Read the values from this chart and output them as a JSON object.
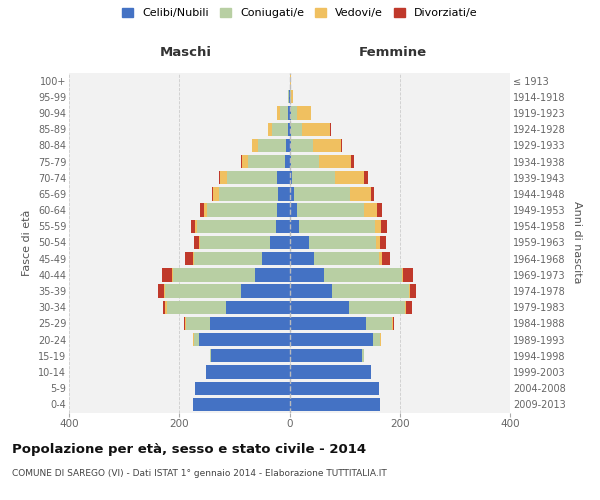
{
  "age_groups": [
    "0-4",
    "5-9",
    "10-14",
    "15-19",
    "20-24",
    "25-29",
    "30-34",
    "35-39",
    "40-44",
    "45-49",
    "50-54",
    "55-59",
    "60-64",
    "65-69",
    "70-74",
    "75-79",
    "80-84",
    "85-89",
    "90-94",
    "95-99",
    "100+"
  ],
  "birth_years": [
    "2009-2013",
    "2004-2008",
    "1999-2003",
    "1994-1998",
    "1989-1993",
    "1984-1988",
    "1979-1983",
    "1974-1978",
    "1969-1973",
    "1964-1968",
    "1959-1963",
    "1954-1958",
    "1949-1953",
    "1944-1948",
    "1939-1943",
    "1934-1938",
    "1929-1933",
    "1924-1928",
    "1919-1923",
    "1914-1918",
    "≤ 1913"
  ],
  "male_celibi": [
    175,
    172,
    152,
    142,
    165,
    145,
    115,
    88,
    62,
    50,
    35,
    25,
    22,
    20,
    22,
    8,
    6,
    3,
    3,
    1,
    0
  ],
  "male_coniugati": [
    0,
    0,
    0,
    2,
    8,
    42,
    108,
    138,
    150,
    123,
    128,
    143,
    128,
    108,
    92,
    68,
    52,
    28,
    14,
    2,
    0
  ],
  "male_vedovi": [
    0,
    0,
    0,
    0,
    2,
    2,
    2,
    2,
    2,
    2,
    2,
    3,
    5,
    10,
    12,
    10,
    10,
    8,
    5,
    0,
    0
  ],
  "male_divorziati": [
    0,
    0,
    0,
    0,
    0,
    2,
    5,
    10,
    18,
    14,
    8,
    8,
    8,
    2,
    2,
    2,
    0,
    0,
    0,
    0,
    0
  ],
  "female_celibi": [
    165,
    162,
    148,
    132,
    152,
    138,
    108,
    78,
    62,
    44,
    35,
    18,
    14,
    8,
    5,
    2,
    2,
    2,
    2,
    0,
    0
  ],
  "female_coniugati": [
    0,
    0,
    0,
    4,
    12,
    48,
    102,
    138,
    142,
    118,
    122,
    138,
    122,
    102,
    78,
    52,
    40,
    20,
    12,
    2,
    0
  ],
  "female_vedovi": [
    0,
    0,
    0,
    0,
    2,
    2,
    2,
    2,
    2,
    5,
    8,
    10,
    22,
    38,
    52,
    58,
    52,
    52,
    25,
    5,
    2
  ],
  "female_divorziati": [
    0,
    0,
    0,
    0,
    0,
    2,
    10,
    12,
    18,
    15,
    10,
    10,
    10,
    5,
    8,
    5,
    2,
    2,
    0,
    0,
    0
  ],
  "color_celibi": "#4472c4",
  "color_coniugati": "#b8cfa3",
  "color_vedovi": "#f0c060",
  "color_divorziati": "#c0392b",
  "title": "Popolazione per età, sesso e stato civile - 2014",
  "subtitle": "COMUNE DI SAREGO (VI) - Dati ISTAT 1° gennaio 2014 - Elaborazione TUTTITALIA.IT",
  "label_maschi": "Maschi",
  "label_femmine": "Femmine",
  "ylabel_left": "Fasce di età",
  "ylabel_right": "Anni di nascita",
  "xlim": 400,
  "bg_color": "#ffffff",
  "plot_bg_color": "#f2f2f2",
  "legend_labels": [
    "Celibi/Nubili",
    "Coniugati/e",
    "Vedovi/e",
    "Divorziati/e"
  ]
}
